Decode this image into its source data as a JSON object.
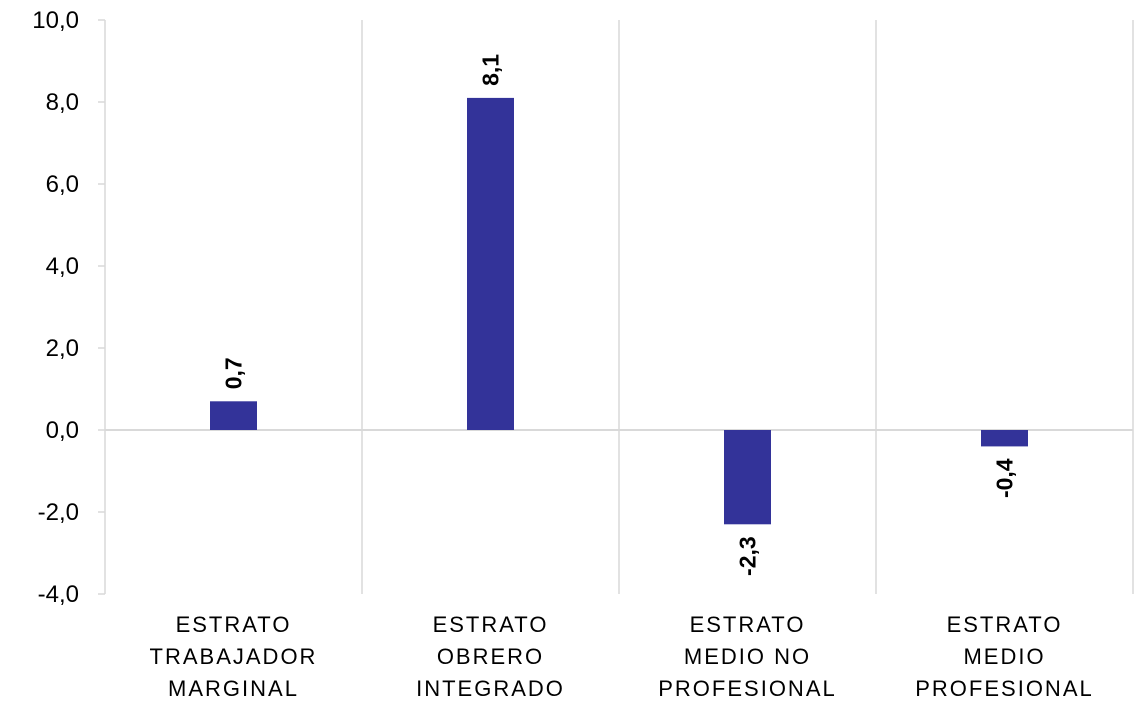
{
  "chart_data": {
    "type": "bar",
    "categories": [
      [
        "ESTRATO",
        "TRABAJADOR",
        "MARGINAL"
      ],
      [
        "ESTRATO",
        "OBRERO",
        "INTEGRADO"
      ],
      [
        "ESTRATO",
        "MEDIO NO",
        "PROFESIONAL"
      ],
      [
        "ESTRATO",
        "MEDIO",
        "PROFESIONAL"
      ]
    ],
    "values": [
      0.7,
      8.1,
      -2.3,
      -0.4
    ],
    "data_labels": [
      "0,7",
      "8,1",
      "-2,3",
      "-0,4"
    ],
    "ylim": [
      -4,
      10
    ],
    "yticks": [
      10,
      8,
      6,
      4,
      2,
      0,
      -2,
      -4
    ],
    "ytick_labels": [
      "10,0",
      "8,0",
      "6,0",
      "4,0",
      "2,0",
      "0,0",
      "-2,0",
      "-4,0"
    ],
    "grid": true,
    "title": "",
    "xlabel": "",
    "ylabel": ""
  },
  "colors": {
    "bar": "#333399",
    "grid": "#d9d9d9",
    "text": "#000000"
  }
}
